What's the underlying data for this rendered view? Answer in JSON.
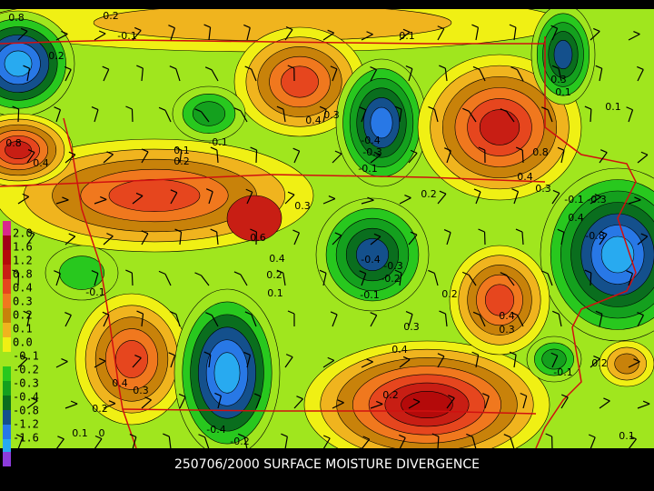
{
  "caption": "250706/2000 SURFACE MOISTURE DIVERGENCE",
  "legend": [
    {
      "label": "2.0",
      "color": "#d8288c"
    },
    {
      "label": "1.6",
      "color": "#a00018"
    },
    {
      "label": "1.2",
      "color": "#b40a0a"
    },
    {
      "label": "0.8",
      "color": "#c81e14"
    },
    {
      "label": "0.4",
      "color": "#e6461e"
    },
    {
      "label": "0.3",
      "color": "#f0781e"
    },
    {
      "label": "0.2",
      "color": "#c8820a"
    },
    {
      "label": "0.1",
      "color": "#f0b41e"
    },
    {
      "label": "0.0",
      "color": "#f0f014"
    },
    {
      "label": "-0.1",
      "color": "#a0e61e"
    },
    {
      "label": "-0.2",
      "color": "#28c81e"
    },
    {
      "label": "-0.3",
      "color": "#14a01e"
    },
    {
      "label": "-0.4",
      "color": "#0a6e1e"
    },
    {
      "label": "-0.8",
      "color": "#14508c"
    },
    {
      "label": "-1.2",
      "color": "#2878e6"
    },
    {
      "label": "-1.6",
      "color": "#28aaf0"
    }
  ],
  "contour_labels": [
    "0.8",
    "0.2",
    "-0.1",
    "0.1",
    "0.2",
    "0.3",
    "0.1",
    "0.1",
    "0.3",
    "0.4",
    "-0.4",
    "-0.3",
    "-0.1",
    "-0.1",
    "0.1",
    "0.2",
    "0.8",
    "0.4",
    "0.8",
    "0.4",
    "0.3",
    "0.2",
    "-0.1",
    "-0.3",
    "0.4",
    "-0.8",
    "0.3",
    "0.6",
    "0.4",
    "0.2",
    "0.1",
    "-0.4",
    "-0.3",
    "-0.2",
    "-0.1",
    "0.2",
    "0.4",
    "0.3",
    "0.3",
    "0.4",
    "-0.1",
    "0.2",
    "0.4",
    "0.3",
    "0.2",
    "0.1",
    "0",
    "-0.4",
    "-0.2",
    "0.2",
    "0.1",
    "-0.1"
  ]
}
